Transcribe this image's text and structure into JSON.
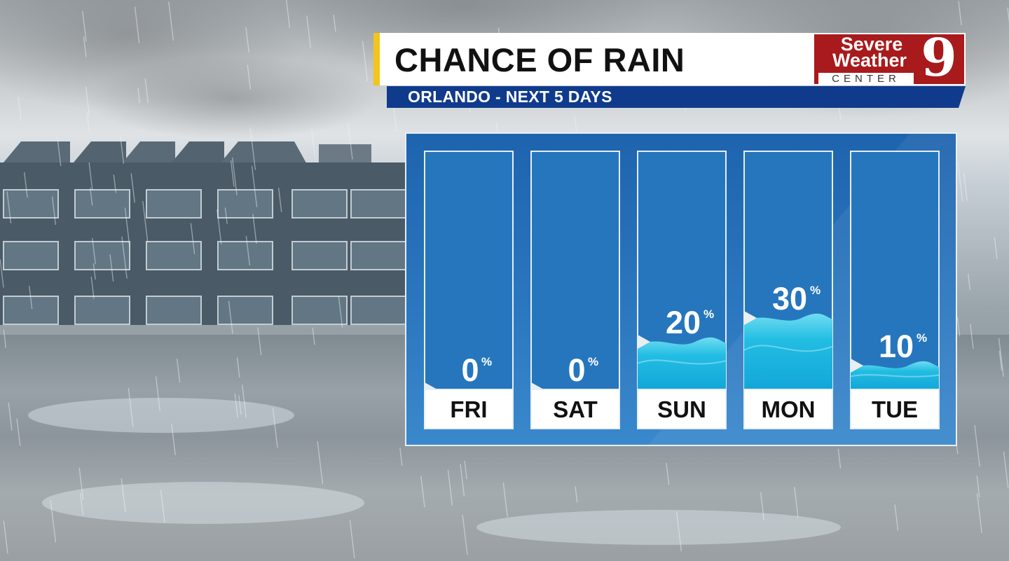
{
  "header": {
    "title": "CHANCE OF RAIN",
    "subtitle": "ORLANDO - NEXT 5 DAYS"
  },
  "logo": {
    "line1": "Severe",
    "line2": "Weather",
    "line3": "CENTER",
    "channel": "9"
  },
  "colors": {
    "title_accent": "#f3c419",
    "subtitle_bar": "#103b8c",
    "logo_red": "#a81a1c",
    "panel_blue": "#2676bd",
    "water": "#19b3dc",
    "water_light": "#6fdcf2"
  },
  "chart_data": {
    "type": "bar",
    "title": "CHANCE OF RAIN",
    "categories": [
      "FRI",
      "SAT",
      "SUN",
      "MON",
      "TUE"
    ],
    "values": [
      0,
      0,
      20,
      30,
      10
    ],
    "unit": "%",
    "ylim": [
      0,
      100
    ],
    "grid": false,
    "legend": "none"
  }
}
